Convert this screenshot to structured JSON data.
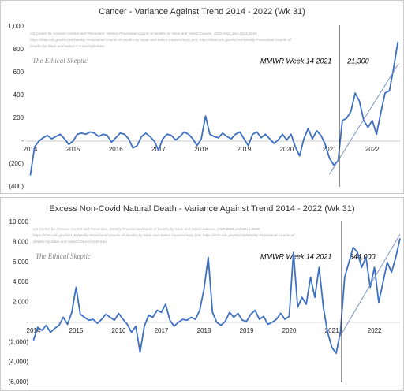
{
  "chart_data": [
    {
      "type": "line",
      "title": "Cancer  - Variance Against Trend  2014 - 2022 (Wk 31)",
      "source_lines": [
        "US Center for Disease Control and Prevention: Weekly Provisional Counts of Deaths by State and Select Causes, 2020-2021 and 2014-2019;",
        "https://data.cdc.gov/NCHS/Weekly-Provisional-Counts-of-Deaths-by-State-and-Select-Causes/muzy-jte6; https://data.cdc.gov/NCHS/Weekly-Provisional-Counts-of-",
        "Deaths-by-State-and-Select-Causes/3yf8-kanr"
      ],
      "watermark": "The Ethical Skeptic",
      "annotation": "MMWR Week 14  2021",
      "total": {
        "value": 21300,
        "label": "21,300"
      },
      "color": "#3d6fc2",
      "x": [
        2014.0,
        2014.1,
        2014.2,
        2014.3,
        2014.4,
        2014.5,
        2014.6,
        2014.7,
        2014.8,
        2014.9,
        2015.0,
        2015.1,
        2015.2,
        2015.3,
        2015.4,
        2015.5,
        2015.6,
        2015.7,
        2015.8,
        2015.9,
        2016.0,
        2016.1,
        2016.2,
        2016.3,
        2016.4,
        2016.5,
        2016.6,
        2016.7,
        2016.8,
        2016.9,
        2017.0,
        2017.1,
        2017.2,
        2017.3,
        2017.4,
        2017.5,
        2017.6,
        2017.7,
        2017.8,
        2017.9,
        2018.0,
        2018.1,
        2018.2,
        2018.3,
        2018.4,
        2018.5,
        2018.6,
        2018.7,
        2018.8,
        2018.9,
        2019.0,
        2019.1,
        2019.2,
        2019.3,
        2019.4,
        2019.5,
        2019.6,
        2019.7,
        2019.8,
        2019.9,
        2020.0,
        2020.1,
        2020.2,
        2020.3,
        2020.4,
        2020.5,
        2020.6,
        2020.7,
        2020.8,
        2020.9,
        2021.0,
        2021.1,
        2021.2,
        2021.3,
        2021.4,
        2021.5,
        2021.6,
        2021.7,
        2021.8,
        2021.9,
        2022.0,
        2022.1,
        2022.2,
        2022.3,
        2022.4,
        2022.5,
        2022.6
      ],
      "values": [
        -300,
        -50,
        0,
        30,
        50,
        20,
        40,
        60,
        20,
        -30,
        0,
        60,
        70,
        60,
        80,
        70,
        40,
        60,
        50,
        -10,
        30,
        70,
        60,
        20,
        -60,
        -40,
        40,
        70,
        40,
        0,
        -80,
        20,
        60,
        50,
        10,
        40,
        80,
        60,
        20,
        -40,
        20,
        220,
        60,
        40,
        30,
        70,
        40,
        20,
        60,
        80,
        20,
        -40,
        60,
        80,
        30,
        60,
        20,
        -20,
        10,
        60,
        10,
        60,
        -50,
        -130,
        20,
        110,
        20,
        90,
        50,
        -30,
        -150,
        -210,
        -170,
        180,
        200,
        260,
        420,
        350,
        180,
        120,
        180,
        60,
        250,
        420,
        440,
        640,
        870
      ],
      "vline_x": 2021.23,
      "trend": {
        "x": [
          2021.0,
          2022.62
        ],
        "y": [
          -290,
          680
        ]
      },
      "xlim": [
        2013.9,
        2022.65
      ],
      "xticks": [
        2014,
        2015,
        2016,
        2017,
        2018,
        2019,
        2020,
        2021,
        2022
      ],
      "ylim": [
        -400,
        1000
      ],
      "yticks": [
        {
          "value": 1000,
          "label": "1,000"
        },
        800,
        600,
        400,
        200,
        {
          "value": 0,
          "label": "-"
        },
        {
          "value": -200,
          "label": "(200)"
        },
        {
          "value": -400,
          "label": "(400)"
        }
      ]
    },
    {
      "type": "line",
      "title": "Excess Non-Covid Natural Death - Variance Against Trend  2014 - 2022 (Wk 31)",
      "source_lines": [
        "US Center for Disease Control and Prevention: Weekly Provisional Counts of Deaths by State and Select Causes, 2020-2021 and 2014-2019;",
        "https://data.cdc.gov/NCHS/Weekly-Provisional-Counts-of-Deaths-by-State-and-Select-Causes/muzy-jte6; https://data.cdc.gov/NCHS/Weekly-Provisional-Counts-of-",
        "Deaths-by-State-and-Select-Causes/3yf8-kanr"
      ],
      "watermark": "The Ethical Skeptic",
      "annotation": "MMWR Week 14  2021",
      "total": {
        "value": 344000,
        "label": "344,000"
      },
      "color": "#3d6fc2",
      "x": [
        2014.0,
        2014.1,
        2014.2,
        2014.3,
        2014.4,
        2014.5,
        2014.6,
        2014.7,
        2014.8,
        2014.9,
        2015.0,
        2015.1,
        2015.2,
        2015.3,
        2015.4,
        2015.5,
        2015.6,
        2015.7,
        2015.8,
        2015.9,
        2016.0,
        2016.1,
        2016.2,
        2016.3,
        2016.4,
        2016.5,
        2016.6,
        2016.7,
        2016.8,
        2016.9,
        2017.0,
        2017.1,
        2017.2,
        2017.3,
        2017.4,
        2017.5,
        2017.6,
        2017.7,
        2017.8,
        2017.9,
        2018.0,
        2018.1,
        2018.2,
        2018.3,
        2018.4,
        2018.5,
        2018.6,
        2018.7,
        2018.8,
        2018.9,
        2019.0,
        2019.1,
        2019.2,
        2019.3,
        2019.4,
        2019.5,
        2019.6,
        2019.7,
        2019.8,
        2019.9,
        2020.0,
        2020.1,
        2020.2,
        2020.3,
        2020.4,
        2020.5,
        2020.6,
        2020.7,
        2020.8,
        2020.9,
        2021.0,
        2021.1,
        2021.2,
        2021.3,
        2021.4,
        2021.5,
        2021.6,
        2021.7,
        2021.8,
        2021.9,
        2022.0,
        2022.1,
        2022.2,
        2022.3,
        2022.4,
        2022.5,
        2022.6
      ],
      "values": [
        -1800,
        -500,
        -800,
        -300,
        -1000,
        -600,
        -300,
        500,
        -200,
        1000,
        3500,
        800,
        500,
        200,
        300,
        -100,
        300,
        800,
        500,
        200,
        900,
        300,
        -200,
        -1000,
        -400,
        -3000,
        -400,
        700,
        500,
        1200,
        1000,
        1800,
        200,
        -400,
        0,
        300,
        200,
        500,
        300,
        1200,
        3300,
        6500,
        1000,
        0,
        -300,
        100,
        1000,
        500,
        900,
        200,
        100,
        800,
        1200,
        300,
        600,
        -200,
        0,
        300,
        900,
        300,
        600,
        7000,
        1500,
        2500,
        1800,
        4500,
        2500,
        5500,
        1500,
        -1000,
        -2500,
        -3100,
        -1000,
        4500,
        6000,
        7500,
        7000,
        5500,
        6500,
        3500,
        5500,
        2000,
        4000,
        6000,
        5000,
        6500,
        8400
      ],
      "vline_x": 2021.23,
      "trend": {
        "x": [
          2021.15,
          2022.6
        ],
        "y": [
          -1700,
          8800
        ]
      },
      "xlim": [
        2013.9,
        2022.6
      ],
      "xticks": [
        2014,
        2015,
        2016,
        2017,
        2018,
        2019,
        2020,
        2021,
        2022
      ],
      "ylim": [
        -6000,
        10000
      ],
      "yticks": [
        {
          "value": 10000,
          "label": "10,000"
        },
        {
          "value": 8000,
          "label": "8,000"
        },
        {
          "value": 6000,
          "label": "6,000"
        },
        {
          "value": 4000,
          "label": "4,000"
        },
        {
          "value": 2000,
          "label": "2,000"
        },
        {
          "value": 0,
          "label": "-"
        },
        {
          "value": -2000,
          "label": "(2,000)"
        },
        {
          "value": -4000,
          "label": "(4,000)"
        },
        {
          "value": -6000,
          "label": "(6,000)"
        }
      ]
    }
  ]
}
